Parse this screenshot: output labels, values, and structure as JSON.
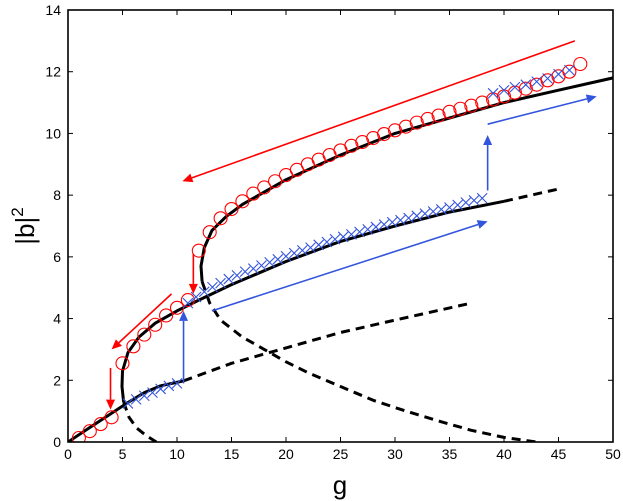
{
  "chart_data": {
    "type": "line",
    "title": "",
    "xlabel": "g",
    "ylabel": "|b|",
    "ylabel_superscript": "2",
    "xlim": [
      0,
      50
    ],
    "ylim": [
      0,
      14
    ],
    "xticks": [
      0,
      5,
      10,
      15,
      20,
      25,
      30,
      35,
      40,
      45,
      50
    ],
    "yticks": [
      0,
      2,
      4,
      6,
      8,
      10,
      12,
      14
    ],
    "grid": false,
    "legend": "none",
    "colors": {
      "curve": "#000000",
      "circles": "#ff0000",
      "crosses": "#3355dd",
      "red_arrow": "#ff0000",
      "blue_arrow": "#3355dd"
    },
    "series": [
      {
        "style": "solid",
        "color": "#000000",
        "x": [
          0,
          2,
          4,
          5.5,
          7,
          8.5,
          10.6
        ],
        "y": [
          0,
          0.47,
          0.93,
          1.28,
          1.6,
          1.82,
          1.98
        ]
      },
      {
        "style": "dashed",
        "color": "#000000",
        "x": [
          10.6,
          15,
          20,
          25,
          30,
          37
        ],
        "y": [
          1.98,
          2.55,
          3.05,
          3.55,
          3.95,
          4.5
        ]
      },
      {
        "style": "solid",
        "color": "#000000",
        "x": [
          5.1,
          4.95,
          5.0,
          5.5,
          6.5,
          8,
          10,
          12,
          15,
          20,
          25,
          30,
          35,
          40
        ],
        "y": [
          1.3,
          1.8,
          2.3,
          2.9,
          3.4,
          3.85,
          4.25,
          4.6,
          5.1,
          5.85,
          6.5,
          7.0,
          7.45,
          7.8
        ]
      },
      {
        "style": "dashed",
        "color": "#000000",
        "x": [
          40,
          45
        ],
        "y": [
          7.8,
          8.2
        ]
      },
      {
        "style": "dashed",
        "color": "#000000",
        "x": [
          5.1,
          5.6,
          6.3,
          7.2,
          8.1
        ],
        "y": [
          1.3,
          0.8,
          0.45,
          0.2,
          0
        ]
      },
      {
        "style": "solid",
        "color": "#000000",
        "x": [
          12.3,
          12.2,
          12.5,
          13.2,
          14.5,
          16,
          18,
          20,
          25,
          30,
          35,
          40,
          45,
          50
        ],
        "y": [
          5.2,
          5.7,
          6.3,
          6.85,
          7.3,
          7.7,
          8.1,
          8.5,
          9.3,
          10.0,
          10.5,
          11.0,
          11.4,
          11.8
        ]
      },
      {
        "style": "dashed",
        "color": "#000000",
        "x": [
          12.3,
          13,
          14,
          16,
          18,
          20,
          22,
          25,
          28,
          31,
          34,
          37,
          40,
          43
        ],
        "y": [
          5.2,
          4.5,
          3.95,
          3.4,
          3.0,
          2.6,
          2.25,
          1.8,
          1.35,
          1.0,
          0.68,
          0.38,
          0.15,
          0
        ]
      }
    ],
    "markers": [
      {
        "marker": "circle",
        "color": "#ff0000",
        "x": [
          1,
          2,
          3,
          4,
          5,
          6,
          7,
          8,
          9,
          10,
          11,
          12,
          13,
          14,
          15,
          16,
          17,
          18,
          19,
          20,
          21,
          22,
          23,
          24,
          25,
          26,
          27,
          28,
          29,
          30,
          31,
          32,
          33,
          34,
          35,
          36,
          37,
          38,
          39,
          40,
          41,
          42,
          43,
          44,
          45,
          46,
          47
        ],
        "y": [
          0.13,
          0.35,
          0.58,
          0.8,
          2.55,
          3.1,
          3.48,
          3.8,
          4.1,
          4.35,
          4.6,
          6.2,
          6.8,
          7.25,
          7.55,
          7.8,
          8.05,
          8.25,
          8.45,
          8.65,
          8.82,
          9.0,
          9.15,
          9.3,
          9.45,
          9.6,
          9.72,
          9.85,
          9.98,
          10.1,
          10.22,
          10.35,
          10.47,
          10.58,
          10.7,
          10.8,
          10.9,
          11.0,
          11.1,
          11.2,
          11.32,
          11.45,
          11.58,
          11.72,
          11.85,
          12.0,
          12.25
        ]
      },
      {
        "marker": "x",
        "color": "#3355dd",
        "x": [
          5.5,
          6.25,
          7,
          7.75,
          8.5,
          9.25,
          10,
          11,
          11.75,
          12.5,
          13.25,
          14,
          14.75,
          15.5,
          16.25,
          17,
          17.75,
          18.5,
          19.25,
          20,
          20.75,
          21.5,
          22.25,
          23,
          23.75,
          24.5,
          25.25,
          26,
          26.75,
          27.5,
          28.25,
          29,
          29.75,
          30.5,
          31.25,
          32,
          32.75,
          33.5,
          34.25,
          35,
          35.75,
          36.5,
          37.25,
          38,
          39,
          40,
          41,
          42,
          43,
          44,
          45,
          46
        ],
        "y": [
          1.25,
          1.38,
          1.5,
          1.6,
          1.72,
          1.82,
          1.9,
          4.5,
          4.7,
          4.87,
          5.02,
          5.15,
          5.28,
          5.4,
          5.52,
          5.62,
          5.72,
          5.82,
          5.92,
          6.02,
          6.12,
          6.21,
          6.3,
          6.39,
          6.48,
          6.57,
          6.65,
          6.73,
          6.81,
          6.89,
          6.97,
          7.05,
          7.12,
          7.19,
          7.26,
          7.33,
          7.4,
          7.47,
          7.54,
          7.6,
          7.68,
          7.76,
          7.83,
          7.9,
          11.3,
          11.4,
          11.5,
          11.58,
          11.68,
          11.78,
          11.92,
          12.05
        ]
      }
    ],
    "arrows": [
      {
        "color": "#ff0000",
        "from": [
          46.5,
          13.0
        ],
        "to": [
          10.5,
          8.45
        ]
      },
      {
        "color": "#ff0000",
        "from": [
          11.5,
          6.1
        ],
        "to": [
          11.5,
          4.8
        ]
      },
      {
        "color": "#ff0000",
        "from": [
          9.5,
          4.8
        ],
        "to": [
          4,
          3.0
        ]
      },
      {
        "color": "#ff0000",
        "from": [
          3.9,
          2.4
        ],
        "to": [
          3.9,
          1.05
        ]
      },
      {
        "color": "#3355dd",
        "from": [
          10.6,
          1.9
        ],
        "to": [
          10.6,
          4.25
        ]
      },
      {
        "color": "#3355dd",
        "from": [
          13.2,
          4.25
        ],
        "to": [
          38.5,
          7.15
        ]
      },
      {
        "color": "#3355dd",
        "from": [
          38.5,
          8.15
        ],
        "to": [
          38.5,
          9.95
        ]
      },
      {
        "color": "#3355dd",
        "from": [
          38.5,
          10.3
        ],
        "to": [
          48.5,
          11.2
        ]
      }
    ]
  }
}
